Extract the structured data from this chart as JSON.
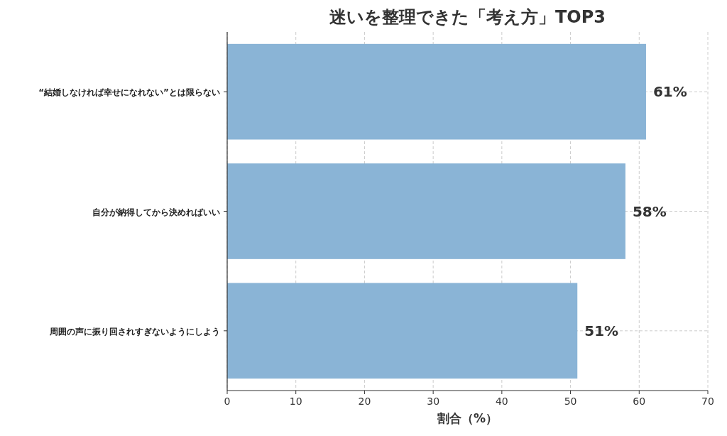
{
  "chart_data": {
    "type": "bar",
    "orientation": "horizontal",
    "title": "迷いを整理できた「考え方」TOP3",
    "xlabel": "割合（%）",
    "categories": [
      "“結婚しなければ幸せになれない”とは限らない",
      "自分が納得してから決めればいい",
      "周囲の声に振り回されすぎないようにしよう"
    ],
    "values": [
      61,
      58,
      51
    ],
    "value_labels": [
      "61%",
      "58%",
      "51%"
    ],
    "color": "#8ab4d6",
    "xlim": [
      0,
      70
    ],
    "xticks": [
      0,
      10,
      20,
      30,
      40,
      50,
      60,
      70
    ],
    "grid": true
  }
}
